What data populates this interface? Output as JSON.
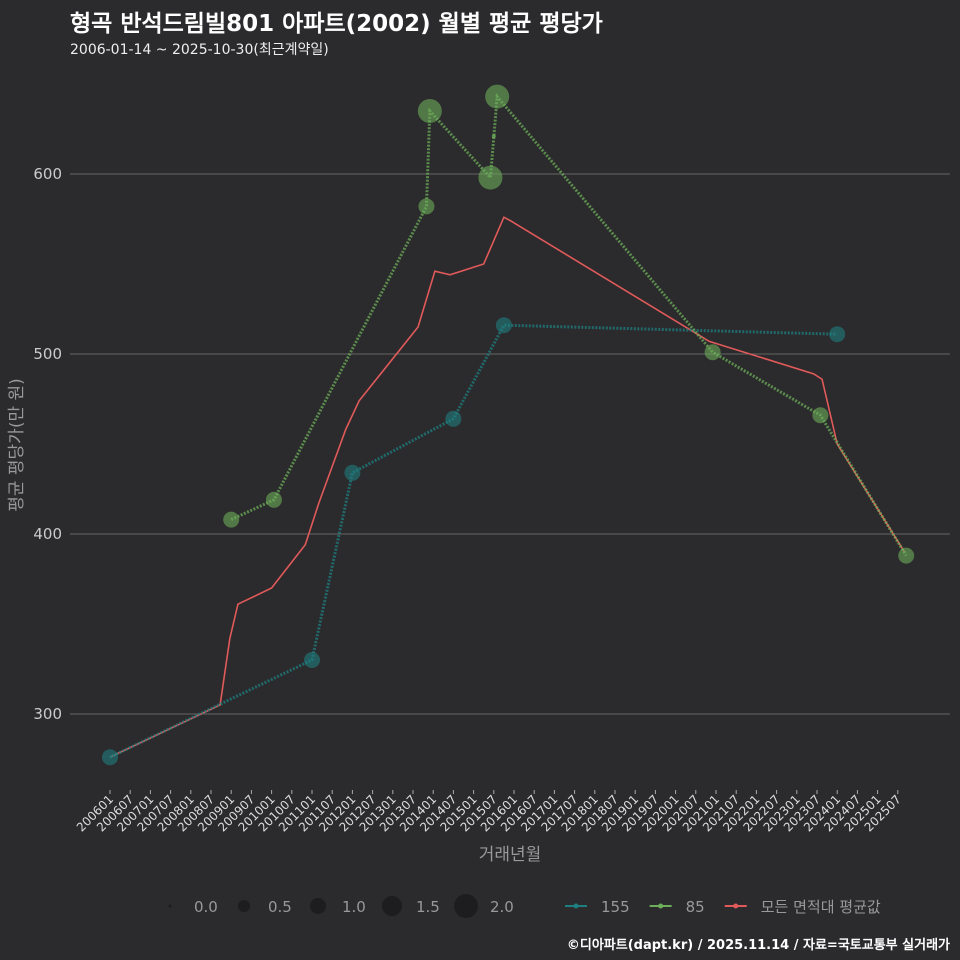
{
  "title": "형곡 반석드림빌801 아파트(2002) 월별 평균 평당가",
  "subtitle": "2006-01-14 ~ 2025-10-30(최근계약일)",
  "credit": "©디아파트(dapt.kr) / 2025.11.14 / 자료=국토교통부 실거래가",
  "chart_data": {
    "type": "line",
    "xlabel": "거래년월",
    "ylabel": "평균 평당가(만 원)",
    "ylim": [
      255,
      660
    ],
    "yticks": [
      300,
      400,
      500,
      600
    ],
    "grid": true,
    "x_unit": "months since 2006-01",
    "xticks": [
      "200601",
      "200607",
      "200701",
      "200707",
      "200801",
      "200807",
      "200901",
      "200907",
      "201001",
      "201007",
      "201101",
      "201107",
      "201201",
      "201207",
      "201301",
      "201307",
      "201401",
      "201407",
      "201501",
      "201507",
      "201601",
      "201607",
      "201701",
      "201707",
      "201801",
      "201807",
      "201901",
      "201907",
      "202001",
      "202007",
      "202101",
      "202107",
      "202201",
      "202207",
      "202301",
      "202307",
      "202401",
      "202407",
      "202501",
      "202507"
    ],
    "size_legend": {
      "title": "",
      "values": [
        0.0,
        0.5,
        1.0,
        1.5,
        2.0
      ]
    },
    "legend_placement": "bottom",
    "series": [
      {
        "name": "155",
        "color": "#1f7f80",
        "points": [
          [
            0,
            276,
            1
          ],
          [
            60,
            330,
            1
          ],
          [
            72,
            434,
            1
          ],
          [
            102,
            464,
            1
          ],
          [
            117,
            516,
            1
          ],
          [
            216,
            511,
            1
          ]
        ]
      },
      {
        "name": "85",
        "color": "#6cae5a",
        "points": [
          [
            36,
            408,
            1
          ],
          [
            48.7,
            419,
            1
          ],
          [
            94,
            582,
            1
          ],
          [
            95,
            635,
            2
          ],
          [
            113,
            598,
            2
          ],
          [
            115,
            643,
            2
          ],
          [
            179,
            501,
            1
          ],
          [
            211,
            466,
            1
          ],
          [
            236.5,
            388,
            1
          ]
        ],
        "extra_points": [
          [
            114,
            621,
            0
          ]
        ]
      },
      {
        "name": "모든 면적대 평균값",
        "color": "#e05a5a",
        "points": [
          [
            0,
            276
          ],
          [
            32.7,
            305
          ],
          [
            35.6,
            342
          ],
          [
            38,
            361
          ],
          [
            48,
            370
          ],
          [
            58,
            394
          ],
          [
            62,
            417
          ],
          [
            70,
            458
          ],
          [
            74,
            474
          ],
          [
            91.5,
            515
          ],
          [
            96.5,
            546
          ],
          [
            101,
            544
          ],
          [
            111,
            550
          ],
          [
            117,
            576
          ],
          [
            119,
            574
          ],
          [
            178,
            507
          ],
          [
            209,
            489
          ],
          [
            211.5,
            486
          ],
          [
            216,
            450
          ],
          [
            236,
            390
          ]
        ]
      }
    ]
  }
}
